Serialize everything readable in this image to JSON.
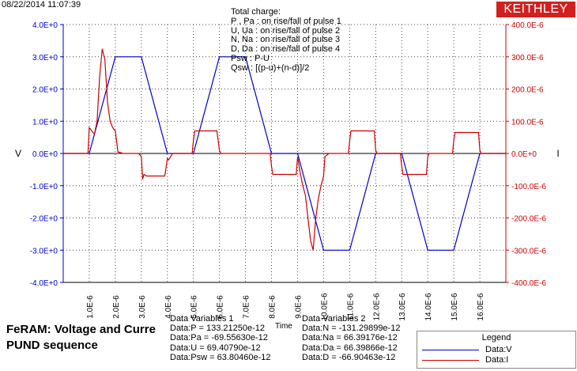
{
  "header": {
    "timestamp": "08/22/2014 11:07:39",
    "brand": "KEITHLEY"
  },
  "annotation": {
    "lines": [
      "Total charge:",
      "P , Pa  :  on rise/fall of pulse 1",
      "U, Ua   :  on rise/fall of pulse 2",
      "N, Na  :  on rise/fall of pulse 3",
      "D, Da  :  on rise/fall of pulse 4",
      "Psw :  P-U",
      "Qsw :  [(p-u)+(n-d)]/2"
    ]
  },
  "subtitle": {
    "line1": "FeRAM: Voltage and Curre",
    "line2": "PUND sequence"
  },
  "data_vars_1": {
    "title": "Data Variables 1",
    "lines": [
      "Data:P = 133.21250e-12",
      "Data:Pa = -69.55630e-12",
      "Data:U = 69.40790e-12",
      "Data:Psw = 63.80460e-12"
    ]
  },
  "data_vars_2": {
    "title": "Data Variables 2",
    "lines": [
      "Data:N = -131.29899e-12",
      "Data:Na = 66.39176e-12",
      "Data:Da = 66.39866e-12",
      "Data:D = -66.90463e-12"
    ]
  },
  "legend": {
    "title": "Legend",
    "items": [
      {
        "label": "Data:V",
        "color": "#0000cc"
      },
      {
        "label": "Data:I",
        "color": "#cc0000"
      }
    ]
  },
  "colors": {
    "voltage": "#0000cc",
    "current": "#cc0000",
    "left_axis": "#0000cc",
    "right_axis": "#cc0000",
    "brand_bg": "#d21f1f"
  },
  "chart_data": {
    "type": "line",
    "xlabel": "Time",
    "ylabel": "V",
    "y2label": "I",
    "xlim": [
      0,
      1.7e-05
    ],
    "ylim": [
      -4,
      4
    ],
    "y2lim": [
      -0.0004,
      0.0004
    ],
    "grid": true,
    "legend_position": "bottom-right",
    "x_ticks": [
      "1.0E-6",
      "2.0E-6",
      "3.0E-6",
      "4.0E-6",
      "5.0E-6",
      "6.0E-6",
      "7.0E-6",
      "8.0E-6",
      "9.0E-6",
      "10.0E-6",
      "11.0E-6",
      "12.0E-6",
      "13.0E-6",
      "14.0E-6",
      "15.0E-6",
      "16.0E-6"
    ],
    "y_ticks": [
      "4.0E+0",
      "3.0E+0",
      "2.0E+0",
      "1.0E+0",
      "0.0E+0",
      "-1.0E+0",
      "-2.0E+0",
      "-3.0E+0",
      "-4.0E+0"
    ],
    "y2_ticks": [
      "400.0E-6",
      "300.0E-6",
      "200.0E-6",
      "100.0E-6",
      "0.0E+0",
      "-100.0E-6",
      "-200.0E-6",
      "-300.0E-6",
      "-400.0E-6"
    ],
    "series": [
      {
        "name": "Data:V",
        "axis": "left",
        "color": "#0000cc",
        "x": [
          0,
          1e-06,
          2e-06,
          3e-06,
          4e-06,
          5e-06,
          6e-06,
          7e-06,
          8e-06,
          9e-06,
          1e-05,
          1.1e-05,
          1.2e-05,
          1.3e-05,
          1.4e-05,
          1.5e-05,
          1.6e-05,
          1.7e-05
        ],
        "y": [
          0,
          0,
          3.0,
          3.0,
          0,
          0,
          3.0,
          3.0,
          0,
          0,
          -3.0,
          -3.0,
          0,
          0,
          -3.0,
          -3.0,
          0,
          0
        ]
      },
      {
        "name": "Data:I",
        "axis": "right",
        "color": "#cc0000",
        "x": [
          0,
          9.5e-07,
          1e-06,
          1.1e-06,
          1.2e-06,
          1.3e-06,
          1.4e-06,
          1.5e-06,
          1.6e-06,
          1.7e-06,
          1.8e-06,
          1.9e-06,
          2e-06,
          2.1e-06,
          2.3e-06,
          2.6e-06,
          2.9e-06,
          3e-06,
          3.05e-06,
          3.1e-06,
          3.2e-06,
          3.5e-06,
          3.9e-06,
          4e-06,
          4.05e-06,
          4.2e-06,
          4.5e-06,
          4.95e-06,
          5e-06,
          5.05e-06,
          5.2e-06,
          5.6e-06,
          5.9e-06,
          6e-06,
          6.05e-06,
          6.2e-06,
          7e-06,
          7.95e-06,
          8e-06,
          8.05e-06,
          8.2e-06,
          8.5e-06,
          8.95e-06,
          9e-06,
          9.1e-06,
          9.2e-06,
          9.3e-06,
          9.4e-06,
          9.5e-06,
          9.6e-06,
          9.7e-06,
          9.8e-06,
          9.9e-06,
          1e-05,
          1.005e-05,
          1.02e-05,
          1.05e-05,
          1.095e-05,
          1.1e-05,
          1.105e-05,
          1.12e-05,
          1.16e-05,
          1.195e-05,
          1.2e-05,
          1.205e-05,
          1.22e-05,
          1.26e-05,
          1.295e-05,
          1.3e-05,
          1.305e-05,
          1.32e-05,
          1.36e-05,
          1.395e-05,
          1.4e-05,
          1.405e-05,
          1.42e-05,
          1.46e-05,
          1.495e-05,
          1.5e-05,
          1.505e-05,
          1.52e-05,
          1.56e-05,
          1.595e-05,
          1.6e-05,
          1.605e-05,
          1.62e-05,
          1.7e-05
        ],
        "y": [
          0,
          0,
          8e-05,
          7e-05,
          6e-05,
          0.0001,
          0.00024,
          0.000325,
          0.00029,
          0.00016,
          0.0001,
          8e-05,
          7e-05,
          5e-06,
          0,
          0,
          0,
          -1e-05,
          -8e-05,
          -6.5e-05,
          -7e-05,
          -7e-05,
          -7e-05,
          -1.5e-05,
          -2e-05,
          0,
          0,
          0,
          4e-05,
          7e-05,
          7e-05,
          7e-05,
          7e-05,
          1e-05,
          0,
          0,
          0,
          0,
          -4e-05,
          -6.5e-05,
          -6.5e-05,
          -6.5e-05,
          -6.5e-05,
          -1e-05,
          -6e-05,
          -0.0001,
          -0.00013,
          -0.0002,
          -0.00027,
          -0.0003,
          -0.0002,
          -0.00014,
          -0.0001,
          -7e-05,
          -1e-05,
          0,
          0,
          0,
          4e-05,
          7e-05,
          7e-05,
          7e-05,
          7e-05,
          1e-05,
          0,
          0,
          0,
          0,
          -4e-05,
          -6.5e-05,
          -6.5e-05,
          -6.5e-05,
          -6.5e-05,
          -1e-05,
          0,
          0,
          0,
          0,
          4e-05,
          6.5e-05,
          6.5e-05,
          6.5e-05,
          6.5e-05,
          1e-05,
          0,
          0,
          0
        ]
      }
    ]
  }
}
